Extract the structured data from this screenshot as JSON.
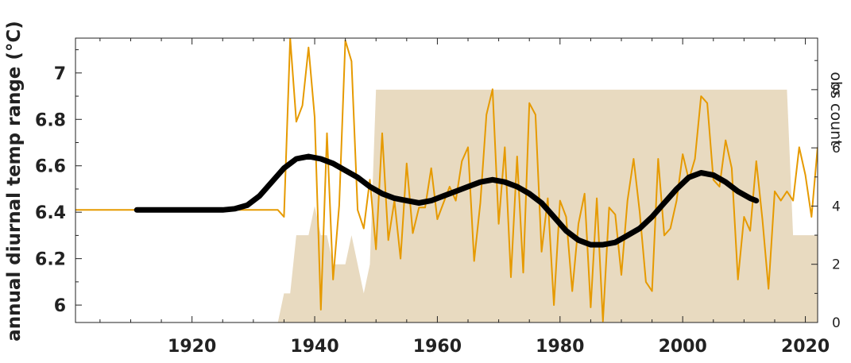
{
  "chart_data": {
    "type": "line",
    "title": "",
    "xlabel": "",
    "ylabel": "annual diurnal temp range (°C)",
    "y2label": "obs count",
    "xlim": [
      1901,
      2022
    ],
    "ylim": [
      5.925,
      7.15
    ],
    "y2lim": [
      0,
      9.77
    ],
    "xticks": [
      1920,
      1940,
      1960,
      1980,
      2000,
      2020
    ],
    "yticks": [
      6,
      6.2,
      6.4,
      6.6,
      6.8,
      7
    ],
    "y2ticks": [
      0,
      2,
      4,
      6,
      8
    ],
    "grid": false,
    "colors": {
      "annual": "#E69A00",
      "smooth": "#000000",
      "count": "#E8DAC0",
      "axis": "#222222"
    },
    "series": [
      {
        "role": "annual",
        "x": [
          1901,
          1902,
          1903,
          1904,
          1905,
          1906,
          1907,
          1908,
          1909,
          1910,
          1911,
          1912,
          1913,
          1914,
          1915,
          1916,
          1917,
          1918,
          1919,
          1920,
          1921,
          1922,
          1923,
          1924,
          1925,
          1926,
          1927,
          1928,
          1929,
          1930,
          1931,
          1932,
          1933,
          1934,
          1935,
          1936,
          1937,
          1938,
          1939,
          1940,
          1941,
          1942,
          1943,
          1944,
          1945,
          1946,
          1947,
          1948,
          1949,
          1950,
          1951,
          1952,
          1953,
          1954,
          1955,
          1956,
          1957,
          1958,
          1959,
          1960,
          1961,
          1962,
          1963,
          1964,
          1965,
          1966,
          1967,
          1968,
          1969,
          1970,
          1971,
          1972,
          1973,
          1974,
          1975,
          1976,
          1977,
          1978,
          1979,
          1980,
          1981,
          1982,
          1983,
          1984,
          1985,
          1986,
          1987,
          1988,
          1989,
          1990,
          1991,
          1992,
          1993,
          1994,
          1995,
          1996,
          1997,
          1998,
          1999,
          2000,
          2001,
          2002,
          2003,
          2004,
          2005,
          2006,
          2007,
          2008,
          2009,
          2010,
          2011,
          2012,
          2013,
          2014,
          2015,
          2016,
          2017,
          2018,
          2019,
          2020,
          2021,
          2022
        ],
        "y": [
          6.41,
          6.41,
          6.41,
          6.41,
          6.41,
          6.41,
          6.41,
          6.41,
          6.41,
          6.41,
          6.41,
          6.41,
          6.41,
          6.41,
          6.41,
          6.41,
          6.41,
          6.41,
          6.41,
          6.41,
          6.41,
          6.41,
          6.41,
          6.41,
          6.41,
          6.41,
          6.41,
          6.41,
          6.41,
          6.41,
          6.41,
          6.41,
          6.41,
          6.41,
          6.38,
          7.15,
          6.79,
          6.86,
          7.11,
          6.81,
          5.98,
          6.74,
          6.11,
          6.43,
          7.14,
          7.05,
          6.41,
          6.33,
          6.54,
          6.24,
          6.74,
          6.28,
          6.45,
          6.2,
          6.61,
          6.31,
          6.42,
          6.42,
          6.59,
          6.37,
          6.44,
          6.51,
          6.45,
          6.62,
          6.68,
          6.19,
          6.44,
          6.82,
          6.93,
          6.35,
          6.68,
          6.12,
          6.64,
          6.14,
          6.87,
          6.82,
          6.23,
          6.46,
          6.0,
          6.45,
          6.38,
          6.06,
          6.35,
          6.48,
          5.99,
          6.46,
          5.93,
          6.42,
          6.39,
          6.13,
          6.45,
          6.63,
          6.4,
          6.1,
          6.06,
          6.63,
          6.3,
          6.33,
          6.45,
          6.65,
          6.54,
          6.63,
          6.9,
          6.87,
          6.54,
          6.51,
          6.71,
          6.59,
          6.11,
          6.38,
          6.32,
          6.62,
          6.37,
          6.07,
          6.49,
          6.45,
          6.49,
          6.45,
          6.68,
          6.56,
          6.38,
          6.68
        ]
      },
      {
        "role": "smooth",
        "x": [
          1911,
          1913,
          1915,
          1917,
          1919,
          1921,
          1923,
          1925,
          1927,
          1929,
          1931,
          1933,
          1935,
          1937,
          1939,
          1941,
          1943,
          1945,
          1947,
          1949,
          1951,
          1953,
          1955,
          1957,
          1959,
          1961,
          1963,
          1965,
          1967,
          1969,
          1971,
          1973,
          1975,
          1977,
          1979,
          1981,
          1983,
          1985,
          1987,
          1989,
          1991,
          1993,
          1995,
          1997,
          1999,
          2001,
          2003,
          2005,
          2007,
          2009,
          2011,
          2012
        ],
        "y": [
          6.41,
          6.41,
          6.41,
          6.41,
          6.41,
          6.41,
          6.41,
          6.41,
          6.415,
          6.43,
          6.47,
          6.53,
          6.59,
          6.63,
          6.64,
          6.63,
          6.61,
          6.58,
          6.55,
          6.51,
          6.48,
          6.46,
          6.45,
          6.44,
          6.45,
          6.47,
          6.49,
          6.51,
          6.53,
          6.54,
          6.53,
          6.51,
          6.48,
          6.44,
          6.38,
          6.32,
          6.28,
          6.26,
          6.26,
          6.27,
          6.3,
          6.33,
          6.38,
          6.44,
          6.5,
          6.55,
          6.57,
          6.56,
          6.53,
          6.49,
          6.46,
          6.45
        ]
      },
      {
        "role": "count",
        "x": [
          1934,
          1935,
          1936,
          1937,
          1938,
          1939,
          1940,
          1941,
          1942,
          1943,
          1944,
          1945,
          1946,
          1947,
          1948,
          1949,
          1950,
          1951,
          1952,
          1953,
          1954,
          1955,
          1956,
          1957,
          1958,
          1959,
          1960,
          1961,
          1962,
          1963,
          1964,
          1965,
          1966,
          1967,
          1968,
          1969,
          1970,
          1971,
          1972,
          1973,
          1974,
          1975,
          1976,
          1977,
          1978,
          1979,
          1980,
          1981,
          1982,
          1983,
          1984,
          1985,
          1986,
          1987,
          1988,
          1989,
          1990,
          1991,
          1992,
          1993,
          1994,
          1995,
          1996,
          1997,
          1998,
          1999,
          2000,
          2001,
          2002,
          2003,
          2004,
          2005,
          2006,
          2007,
          2008,
          2009,
          2010,
          2011,
          2012,
          2013,
          2014,
          2015,
          2016,
          2017,
          2018,
          2019,
          2020,
          2021,
          2022
        ],
        "y": [
          0,
          1,
          1,
          3,
          3,
          3,
          4,
          3,
          3,
          2,
          2,
          2,
          3,
          2,
          1,
          2,
          8,
          8,
          8,
          8,
          8,
          8,
          8,
          8,
          8,
          8,
          8,
          8,
          8,
          8,
          8,
          8,
          8,
          8,
          8,
          8,
          8,
          8,
          8,
          8,
          8,
          8,
          8,
          8,
          8,
          8,
          8,
          8,
          8,
          8,
          8,
          8,
          8,
          8,
          8,
          8,
          8,
          8,
          8,
          8,
          8,
          8,
          8,
          8,
          8,
          8,
          8,
          8,
          8,
          8,
          8,
          8,
          8,
          8,
          8,
          8,
          8,
          8,
          8,
          8,
          8,
          8,
          8,
          8,
          3,
          3,
          3,
          3,
          3
        ]
      }
    ]
  }
}
